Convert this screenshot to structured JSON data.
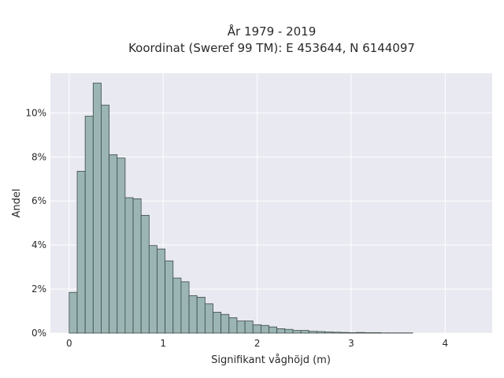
{
  "chart_data": {
    "type": "bar",
    "title_line1": "År 1979 - 2019",
    "title_line2": "Koordinat (Sweref 99 TM): E 453644, N 6144097",
    "xlabel": "Signifikant våghöjd (m)",
    "ylabel": "Andel",
    "bin_width": 0.085,
    "bin_start": 0.0,
    "values": [
      1.85,
      7.35,
      9.85,
      11.35,
      10.35,
      8.1,
      7.95,
      6.15,
      6.1,
      5.35,
      3.98,
      3.82,
      3.28,
      2.5,
      2.33,
      1.7,
      1.63,
      1.33,
      0.95,
      0.85,
      0.7,
      0.55,
      0.55,
      0.38,
      0.35,
      0.28,
      0.2,
      0.17,
      0.12,
      0.12,
      0.08,
      0.07,
      0.05,
      0.04,
      0.03,
      0.02,
      0.03,
      0.02,
      0.02,
      0.01,
      0.01,
      0.01,
      0.01
    ],
    "xlim": [
      -0.2,
      4.5
    ],
    "ylim": [
      0,
      11.8
    ],
    "xticks": [
      0,
      1,
      2,
      3,
      4
    ],
    "yticks": [
      0,
      2,
      4,
      6,
      8,
      10
    ],
    "ytick_labels": [
      "0%",
      "2%",
      "4%",
      "6%",
      "8%",
      "10%"
    ],
    "grid": true,
    "bar_color": "#9ab5b4",
    "edge_color": "#3e4a4a",
    "plot_bg": "#e9e9f1"
  }
}
